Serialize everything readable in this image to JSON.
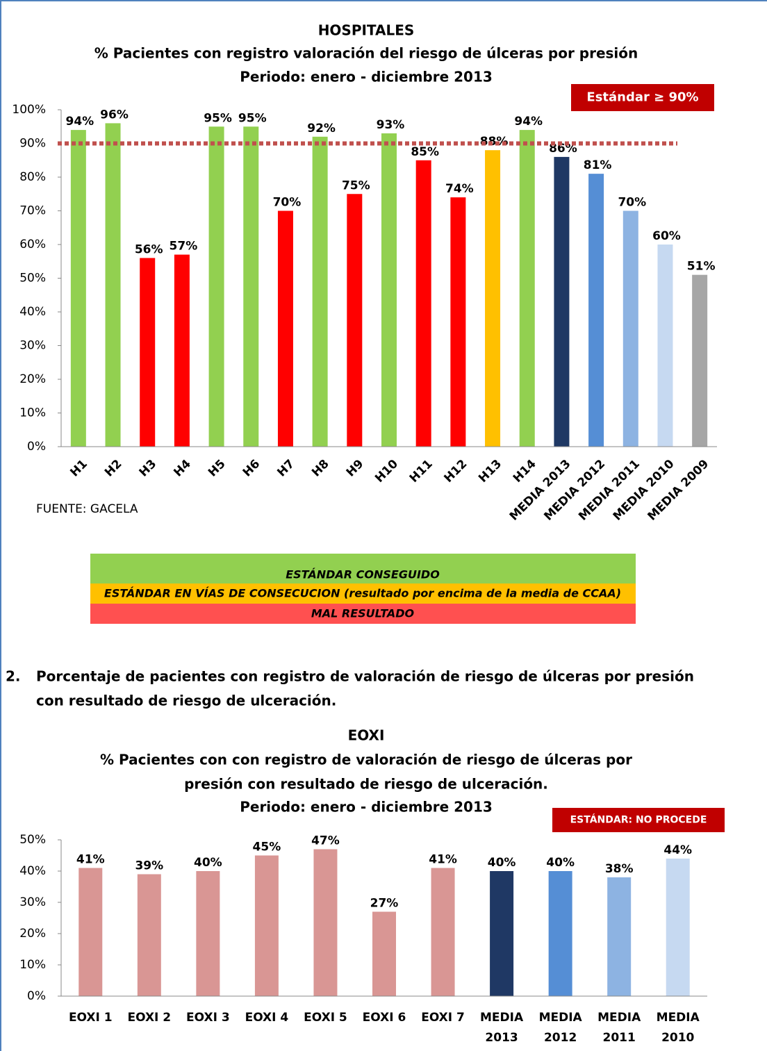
{
  "chart_data": [
    {
      "type": "bar",
      "title": [
        "HOSPITALES",
        "% Pacientes con registro valoración del riesgo de úlceras por presión",
        "Periodo: enero - diciembre 2013"
      ],
      "annotation": "Estándar  ≥ 90%",
      "reference_line": {
        "value": 90,
        "color": "#c0504d"
      },
      "categories": [
        "H1",
        "H2",
        "H3",
        "H4",
        "H5",
        "H6",
        "H7",
        "H8",
        "H9",
        "H10",
        "H11",
        "H12",
        "H13",
        "H14",
        "MEDIA 2013",
        "MEDIA 2012",
        "MEDIA 2011",
        "MEDIA 2010",
        "MEDIA 2009"
      ],
      "values": [
        94,
        96,
        56,
        57,
        95,
        95,
        70,
        92,
        75,
        93,
        85,
        74,
        88,
        94,
        86,
        81,
        70,
        60,
        51
      ],
      "value_labels": [
        "94%",
        "96%",
        "56%",
        "57%",
        "95%",
        "95%",
        "70%",
        "92%",
        "75%",
        "93%",
        "85%",
        "74%",
        "88%",
        "94%",
        "86%",
        "81%",
        "70%",
        "60%",
        "51%"
      ],
      "colors": [
        "#92d050",
        "#92d050",
        "#ff0000",
        "#ff0000",
        "#92d050",
        "#92d050",
        "#ff0000",
        "#92d050",
        "#ff0000",
        "#92d050",
        "#ff0000",
        "#ff0000",
        "#ffc000",
        "#92d050",
        "#1f3864",
        "#558ed5",
        "#8db3e2",
        "#c6d9f1",
        "#a6a6a6"
      ],
      "ylim": [
        0,
        100
      ],
      "yticks": [
        {
          "value": 0,
          "label": "0%"
        },
        {
          "value": 10,
          "label": "10%"
        },
        {
          "value": 20,
          "label": "20%"
        },
        {
          "value": 30,
          "label": "30%"
        },
        {
          "value": 40,
          "label": "40%"
        },
        {
          "value": 50,
          "label": "50%"
        },
        {
          "value": 60,
          "label": "60%"
        },
        {
          "value": 70,
          "label": "70%"
        },
        {
          "value": 80,
          "label": "80%"
        },
        {
          "value": 90,
          "label": "90%"
        },
        {
          "value": 100,
          "label": "100%"
        }
      ],
      "source": "FUENTE: GACELA"
    },
    {
      "type": "bar",
      "title": [
        "EOXI",
        "% Pacientes con con registro de valoración de riesgo de úlceras por",
        "presión  con resultado de riesgo de ulceración.",
        "Periodo: enero - diciembre 2013"
      ],
      "annotation": "ESTÁNDAR: NO PROCEDE",
      "categories": [
        "EOXI 1",
        "EOXI 2",
        "EOXI 3",
        "EOXI 4",
        "EOXI 5",
        "EOXI 6",
        "EOXI 7",
        "MEDIA 2013",
        "MEDIA 2012",
        "MEDIA 2011",
        "MEDIA 2010"
      ],
      "values": [
        41,
        39,
        40,
        45,
        47,
        27,
        41,
        40,
        40,
        38,
        44
      ],
      "value_labels": [
        "41%",
        "39%",
        "40%",
        "45%",
        "47%",
        "27%",
        "41%",
        "40%",
        "40%",
        "38%",
        "44%"
      ],
      "colors": [
        "#d99694",
        "#d99694",
        "#d99694",
        "#d99694",
        "#d99694",
        "#d99694",
        "#d99694",
        "#1f3864",
        "#558ed5",
        "#8db3e2",
        "#c6d9f1"
      ],
      "ylim": [
        0,
        50
      ],
      "yticks": [
        {
          "value": 0,
          "label": "0%"
        },
        {
          "value": 10,
          "label": "10%"
        },
        {
          "value": 20,
          "label": "20%"
        },
        {
          "value": 30,
          "label": "30%"
        },
        {
          "value": 40,
          "label": "40%"
        },
        {
          "value": 50,
          "label": "50%"
        }
      ]
    }
  ],
  "legend_box": [
    {
      "text": "ESTÁNDAR  CONSEGUIDO",
      "color": "#92d050"
    },
    {
      "text": "ESTÁNDAR  EN VÍAS DE CONSECUCION (resultado por encima de la media de CCAA)",
      "color": "#ffc000"
    },
    {
      "text": "MAL RESULTADO",
      "color": "#ff5050"
    }
  ],
  "heading": {
    "number": "2.",
    "lines": [
      "Porcentaje de pacientes con registro de valoración de riesgo de úlceras por presión",
      "con resultado de riesgo de ulceración."
    ]
  }
}
